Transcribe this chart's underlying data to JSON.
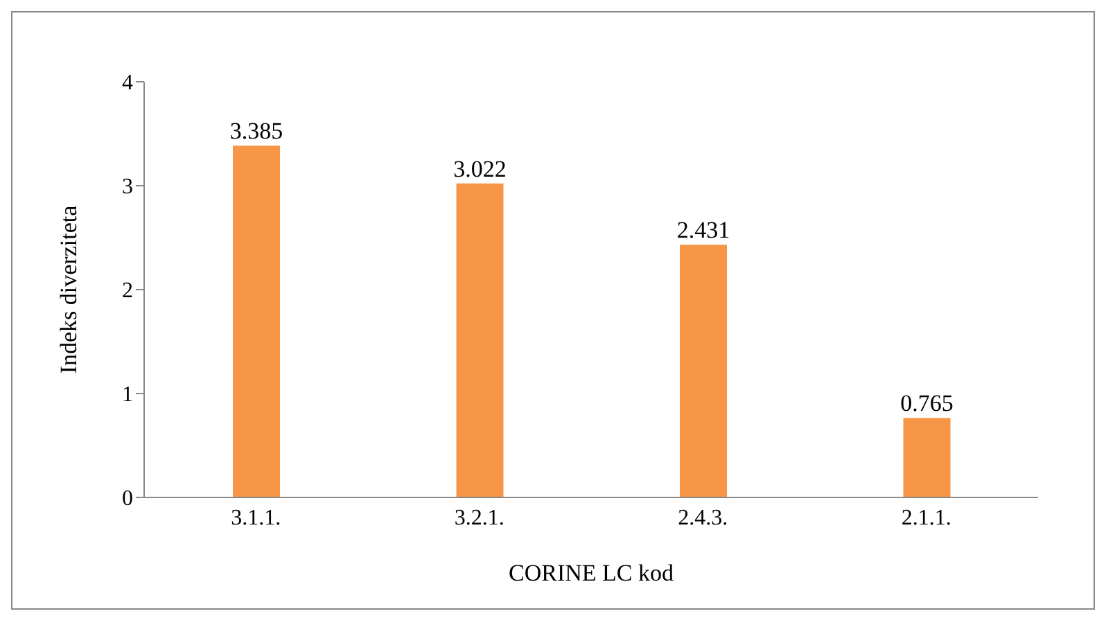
{
  "chart_data": {
    "type": "bar",
    "xlabel": "CORINE LC kod",
    "ylabel": "Indeks diverziteta",
    "categories": [
      "3.1.1.",
      "3.2.1.",
      "2.4.3.",
      "2.1.1."
    ],
    "values": [
      3.385,
      3.022,
      2.431,
      0.765
    ],
    "color": "#f79646",
    "ylim": [
      0,
      4
    ],
    "yticks": [
      0,
      1,
      2,
      3,
      4
    ],
    "grid": false,
    "data_labels": true
  }
}
